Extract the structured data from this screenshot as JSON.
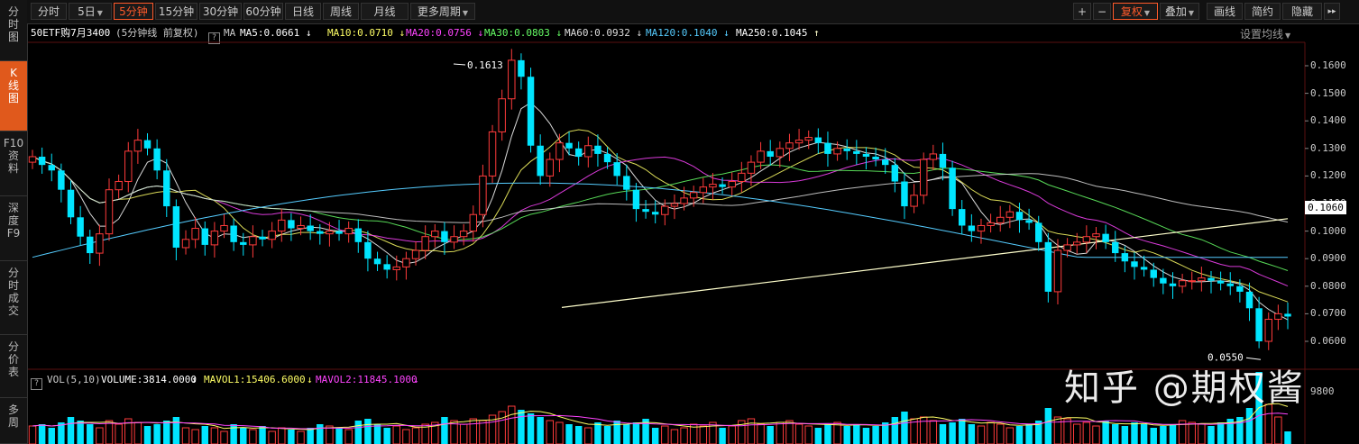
{
  "sidebar": {
    "tabs": [
      {
        "label": "分\n时\n图",
        "active": false
      },
      {
        "label": "K\n线\n图",
        "active": true
      },
      {
        "label": "F10\n资\n料",
        "active": false
      },
      {
        "label": "深\n度\nF9",
        "active": false
      },
      {
        "label": "分\n时\n成\n交",
        "active": false
      },
      {
        "label": "分\n价\n表",
        "active": false
      },
      {
        "label": "多\n周",
        "active": false
      }
    ]
  },
  "toolbar": {
    "periods": [
      "分时",
      "5日",
      "5分钟",
      "15分钟",
      "30分钟",
      "60分钟",
      "日线",
      "周线",
      "月线",
      "更多周期"
    ],
    "active_period": "5分钟",
    "right": {
      "plus": "+",
      "minus": "−",
      "fuquan": "复权",
      "diejia": "叠加",
      "huaxian": "画线",
      "jianyue": "简约",
      "yincang": "隐藏",
      "arrows": "▸▸"
    }
  },
  "info": {
    "title": "50ETF购7月3400",
    "subtitle": "(5分钟线 前复权)",
    "ma_label": "MA",
    "ma": [
      {
        "text": "MA5:0.0661",
        "arrow": "↓",
        "color": "#ffffff",
        "arrow_color": "#ffffff"
      },
      {
        "text": "MA10:0.0710",
        "arrow": "↓",
        "color": "#ffff66",
        "arrow_color": "#ffff66"
      },
      {
        "text": "MA20:0.0756",
        "arrow": "↓",
        "color": "#ff44ff",
        "arrow_color": "#ff44ff"
      },
      {
        "text": "MA30:0.0803",
        "arrow": "↓",
        "color": "#66ff66",
        "arrow_color": "#66ff66"
      },
      {
        "text": "MA60:0.0932",
        "arrow": "↓",
        "color": "#dddddd",
        "arrow_color": "#dddddd"
      },
      {
        "text": "MA120:0.1040",
        "arrow": "↓",
        "color": "#55ccff",
        "arrow_color": "#55ccff"
      },
      {
        "text": "MA250:0.1045",
        "arrow": "↑",
        "color": "#ffffff",
        "arrow_color": "#ffffcc"
      }
    ],
    "settings": "设置均线"
  },
  "volume": {
    "label": "VOL(5,10)",
    "volume": "VOLUME:3814.0000",
    "mavol1": "MAVOL1:15406.6000",
    "mavol2": "MAVOL2:11845.1000",
    "down_arrow": "↓"
  },
  "yaxis": {
    "ticks": [
      "0.1600",
      "0.1500",
      "0.1400",
      "0.1300",
      "0.1200",
      "0.1100",
      "0.1000",
      "0.0900",
      "0.0800",
      "0.0700",
      "0.0600"
    ],
    "current_price": "0.1060",
    "volume_tick": "9800"
  },
  "annotations": {
    "high": "0.1613",
    "low": "0.0550"
  },
  "watermark": "知乎 @期权酱",
  "colors": {
    "up": "#ff3b3b",
    "down": "#00e5ff",
    "accent": "#ff5a2a"
  },
  "chart_data": {
    "type": "candlestick",
    "ylim": [
      0.055,
      0.1613
    ],
    "high_marker": 0.1613,
    "low_marker": 0.055,
    "current_price": 0.106,
    "ma_legend": {
      "MA5": 0.0661,
      "MA10": 0.071,
      "MA20": 0.0756,
      "MA30": 0.0803,
      "MA60": 0.0932,
      "MA120": 0.104,
      "MA250": 0.1045
    },
    "volume_legend": {
      "VOLUME": 3814.0,
      "MAVOL1": 15406.6,
      "MAVOL2": 11845.1
    },
    "closes": [
      0.127,
      0.124,
      0.122,
      0.115,
      0.105,
      0.098,
      0.092,
      0.099,
      0.115,
      0.118,
      0.129,
      0.133,
      0.13,
      0.122,
      0.109,
      0.094,
      0.097,
      0.101,
      0.095,
      0.1,
      0.102,
      0.096,
      0.095,
      0.098,
      0.097,
      0.1,
      0.104,
      0.101,
      0.102,
      0.1,
      0.099,
      0.1,
      0.099,
      0.101,
      0.096,
      0.09,
      0.088,
      0.086,
      0.087,
      0.09,
      0.093,
      0.098,
      0.1,
      0.096,
      0.098,
      0.1,
      0.106,
      0.12,
      0.136,
      0.148,
      0.162,
      0.156,
      0.131,
      0.12,
      0.126,
      0.132,
      0.13,
      0.127,
      0.131,
      0.128,
      0.125,
      0.12,
      0.115,
      0.108,
      0.107,
      0.106,
      0.109,
      0.11,
      0.112,
      0.114,
      0.116,
      0.117,
      0.116,
      0.118,
      0.121,
      0.125,
      0.129,
      0.127,
      0.13,
      0.132,
      0.133,
      0.134,
      0.132,
      0.128,
      0.13,
      0.129,
      0.128,
      0.127,
      0.126,
      0.124,
      0.118,
      0.109,
      0.113,
      0.126,
      0.128,
      0.123,
      0.108,
      0.102,
      0.1,
      0.102,
      0.103,
      0.105,
      0.107,
      0.104,
      0.103,
      0.096,
      0.078,
      0.093,
      0.095,
      0.096,
      0.098,
      0.099,
      0.096,
      0.092,
      0.089,
      0.087,
      0.086,
      0.083,
      0.081,
      0.08,
      0.082,
      0.082,
      0.083,
      0.082,
      0.081,
      0.08,
      0.078,
      0.072,
      0.06,
      0.068,
      0.07,
      0.069
    ],
    "volumes": [
      20,
      22,
      18,
      24,
      30,
      26,
      22,
      18,
      26,
      22,
      28,
      24,
      20,
      22,
      26,
      30,
      18,
      16,
      20,
      18,
      14,
      22,
      18,
      16,
      20,
      14,
      18,
      16,
      14,
      18,
      22,
      20,
      18,
      16,
      26,
      28,
      22,
      18,
      20,
      16,
      18,
      22,
      24,
      30,
      26,
      22,
      28,
      26,
      32,
      36,
      42,
      38,
      34,
      30,
      26,
      24,
      22,
      20,
      18,
      24,
      20,
      26,
      22,
      24,
      28,
      18,
      20,
      16,
      18,
      22,
      20,
      24,
      18,
      20,
      26,
      28,
      22,
      20,
      24,
      26,
      22,
      20,
      18,
      22,
      24,
      20,
      22,
      18,
      20,
      24,
      30,
      36,
      28,
      30,
      26,
      22,
      24,
      28,
      22,
      20,
      24,
      22,
      18,
      20,
      22,
      26,
      40,
      30,
      28,
      22,
      24,
      20,
      26,
      22,
      20,
      24,
      22,
      18,
      20,
      22,
      26,
      24,
      22,
      20,
      24,
      28,
      30,
      40,
      80,
      44,
      30,
      14
    ]
  }
}
